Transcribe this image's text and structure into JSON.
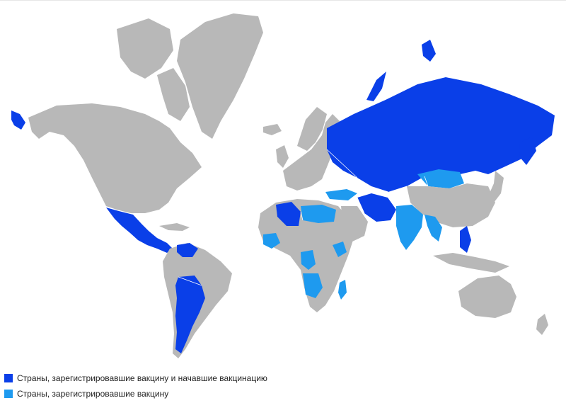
{
  "legend": {
    "items": [
      {
        "label": "Страны, зарегистрировавшие вакцину и начавшие вакцинацию",
        "color": "#0a3fe8"
      },
      {
        "label": "Страны, зарегистрировавшие вакцину",
        "color": "#1e9aef"
      }
    ]
  },
  "map": {
    "no_data_color": "#b8b8b8",
    "countries_registered_and_vaccinating": [
      "Russia",
      "Kazakhstan",
      "Belarus",
      "Serbia",
      "Hungary",
      "Iran",
      "Pakistan",
      "Uzbekistan",
      "Turkmenistan",
      "Kyrgyzstan",
      "Algeria",
      "Mexico",
      "Guatemala",
      "Honduras",
      "Nicaragua",
      "Venezuela",
      "Bolivia",
      "Paraguay",
      "Argentina",
      "Philippines"
    ],
    "countries_registered": [
      "Mongolia",
      "India",
      "Myanmar",
      "Turkey",
      "Egypt",
      "Libya",
      "Tunisia",
      "Mali",
      "Niger",
      "Ghana",
      "Guinea",
      "Congo",
      "Angola",
      "Zambia",
      "Mozambique",
      "Madagascar",
      "Ethiopia",
      "Iraq",
      "Oman",
      "Sri Lanka",
      "Vietnam",
      "Laos",
      "Tajikistan",
      "Syria",
      "Indonesia"
    ]
  }
}
